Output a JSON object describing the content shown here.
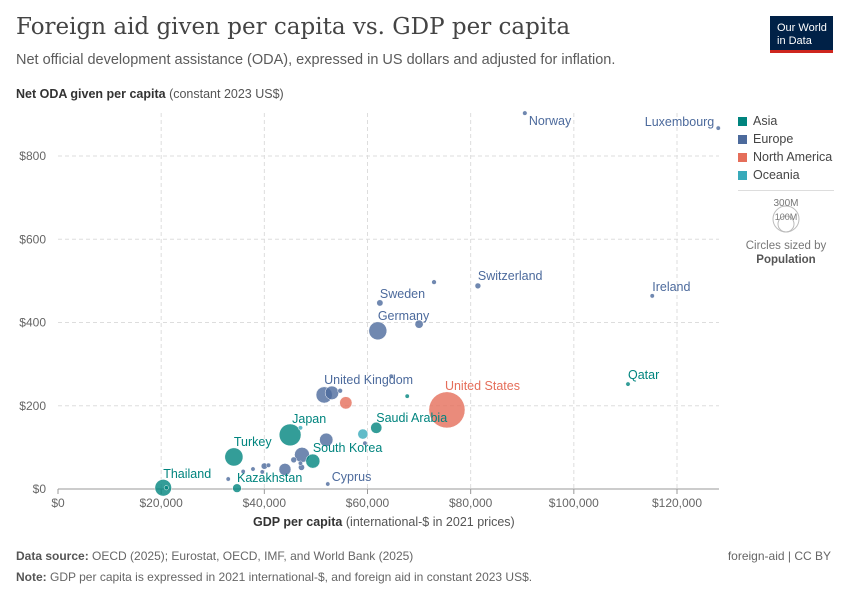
{
  "title": "Foreign aid given per capita vs. GDP per capita",
  "subtitle": "Net official development assistance (ODA), expressed in US dollars and adjusted for inflation.",
  "logo": {
    "line1": "Our World",
    "line2": "in Data"
  },
  "footer": {
    "source_label": "Data source:",
    "source": "OECD (2025); Eurostat, OECD, IMF, and World Bank (2025)",
    "note_label": "Note:",
    "note": "GDP per capita is expressed in 2021 international-$, and foreign aid in constant 2023 US$.",
    "slug": "foreign-aid | CC BY"
  },
  "size_legend": {
    "big": "300M",
    "small": "100M",
    "caption": "Circles sized by",
    "variable": "Population"
  },
  "chart_data": {
    "type": "scatter",
    "title": "Foreign aid given per capita vs. GDP per capita",
    "xlabel_bold": "GDP per capita",
    "xlabel_rest": "(international-$ in 2021 prices)",
    "ylabel_bold": "Net ODA given per capita",
    "ylabel_rest": "(constant 2023 US$)",
    "xlim": [
      0,
      128000
    ],
    "ylim": [
      0,
      900
    ],
    "xticks": [
      {
        "v": 0,
        "t": "$0"
      },
      {
        "v": 20000,
        "t": "$20,000"
      },
      {
        "v": 40000,
        "t": "$40,000"
      },
      {
        "v": 60000,
        "t": "$60,000"
      },
      {
        "v": 80000,
        "t": "$80,000"
      },
      {
        "v": 100000,
        "t": "$100,000"
      },
      {
        "v": 120000,
        "t": "$120,000"
      }
    ],
    "yticks": [
      {
        "v": 0,
        "t": "$0"
      },
      {
        "v": 200,
        "t": "$200"
      },
      {
        "v": 400,
        "t": "$400"
      },
      {
        "v": 600,
        "t": "$600"
      },
      {
        "v": 800,
        "t": "$800"
      }
    ],
    "grid": true,
    "legend_position": "right",
    "colors": {
      "Asia": "#00847e",
      "Europe": "#4c6a9c",
      "North America": "#e56e5a",
      "Oceania": "#38aaba"
    },
    "legend": [
      "Asia",
      "Europe",
      "North America",
      "Oceania"
    ],
    "points": [
      {
        "name": "Norway",
        "region": "Europe",
        "x": 90500,
        "y": 903,
        "pop": 5.5,
        "label": true
      },
      {
        "name": "Luxembourg",
        "region": "Europe",
        "x": 128000,
        "y": 867,
        "pop": 0.7,
        "label": true
      },
      {
        "name": "Switzerland",
        "region": "Europe",
        "x": 81400,
        "y": 488,
        "pop": 8.9,
        "label": true
      },
      {
        "name": "",
        "region": "Europe",
        "x": 72900,
        "y": 497,
        "pop": 5.9
      },
      {
        "name": "Ireland",
        "region": "Europe",
        "x": 115200,
        "y": 464,
        "pop": 5.2,
        "label": true
      },
      {
        "name": "Sweden",
        "region": "Europe",
        "x": 62400,
        "y": 447,
        "pop": 10.5,
        "label": true
      },
      {
        "name": "Germany",
        "region": "Europe",
        "x": 62000,
        "y": 380,
        "pop": 84,
        "label": true
      },
      {
        "name": "",
        "region": "Europe",
        "x": 70000,
        "y": 396,
        "pop": 17.9
      },
      {
        "name": "Qatar",
        "region": "Asia",
        "x": 110500,
        "y": 252,
        "pop": 2.7,
        "label": true
      },
      {
        "name": "United States",
        "region": "North America",
        "x": 75400,
        "y": 190,
        "pop": 340,
        "label": true
      },
      {
        "name": "United Kingdom",
        "region": "Europe",
        "x": 51600,
        "y": 226,
        "pop": 69,
        "label": true
      },
      {
        "name": "",
        "region": "Europe",
        "x": 53100,
        "y": 231,
        "pop": 48
      },
      {
        "name": "",
        "region": "Europe",
        "x": 54700,
        "y": 236,
        "pop": 6
      },
      {
        "name": "",
        "region": "Europe",
        "x": 64600,
        "y": 271,
        "pop": 1.4
      },
      {
        "name": "",
        "region": "Asia",
        "x": 67700,
        "y": 223,
        "pop": 4.9
      },
      {
        "name": "",
        "region": "North America",
        "x": 55800,
        "y": 207,
        "pop": 40
      },
      {
        "name": "Saudi Arabia",
        "region": "Asia",
        "x": 61700,
        "y": 147,
        "pop": 33,
        "label": true
      },
      {
        "name": "",
        "region": "Oceania",
        "x": 59100,
        "y": 132,
        "pop": 27
      },
      {
        "name": "",
        "region": "Europe",
        "x": 59500,
        "y": 110,
        "pop": 1.2
      },
      {
        "name": "Japan",
        "region": "Asia",
        "x": 45000,
        "y": 130,
        "pop": 124,
        "label": true
      },
      {
        "name": "",
        "region": "Oceania",
        "x": 47000,
        "y": 147,
        "pop": 5.2
      },
      {
        "name": "",
        "region": "Europe",
        "x": 52000,
        "y": 118,
        "pop": 47
      },
      {
        "name": "Turkey",
        "region": "Asia",
        "x": 34100,
        "y": 77,
        "pop": 86,
        "label": true
      },
      {
        "name": "",
        "region": "Europe",
        "x": 47300,
        "y": 82,
        "pop": 59
      },
      {
        "name": "South Korea",
        "region": "Asia",
        "x": 49400,
        "y": 67,
        "pop": 52,
        "label": true
      },
      {
        "name": "",
        "region": "Europe",
        "x": 44000,
        "y": 47,
        "pop": 38
      },
      {
        "name": "",
        "region": "Europe",
        "x": 47200,
        "y": 52,
        "pop": 10
      },
      {
        "name": "",
        "region": "Europe",
        "x": 45700,
        "y": 70,
        "pop": 9
      },
      {
        "name": "",
        "region": "Europe",
        "x": 47000,
        "y": 62,
        "pop": 2
      },
      {
        "name": "",
        "region": "Europe",
        "x": 40000,
        "y": 55,
        "pop": 10.4
      },
      {
        "name": "",
        "region": "Europe",
        "x": 40800,
        "y": 57,
        "pop": 5.4
      },
      {
        "name": "",
        "region": "Europe",
        "x": 37800,
        "y": 48,
        "pop": 2.8
      },
      {
        "name": "",
        "region": "Europe",
        "x": 39600,
        "y": 41,
        "pop": 1.9
      },
      {
        "name": "",
        "region": "Europe",
        "x": 35900,
        "y": 42,
        "pop": 1.3
      },
      {
        "name": "Cyprus",
        "region": "Europe",
        "x": 52300,
        "y": 12,
        "pop": 1.3,
        "label": true
      },
      {
        "name": "",
        "region": "Europe",
        "x": 33000,
        "y": 24,
        "pop": 2.1
      },
      {
        "name": "Thailand",
        "region": "Asia",
        "x": 20400,
        "y": 3,
        "pop": 72,
        "label": true
      },
      {
        "name": "",
        "region": "Asia",
        "x": 21000,
        "y": 3,
        "pop": 3
      },
      {
        "name": "Kazakhstan",
        "region": "Asia",
        "x": 34700,
        "y": 2,
        "pop": 20,
        "label": true
      }
    ]
  }
}
